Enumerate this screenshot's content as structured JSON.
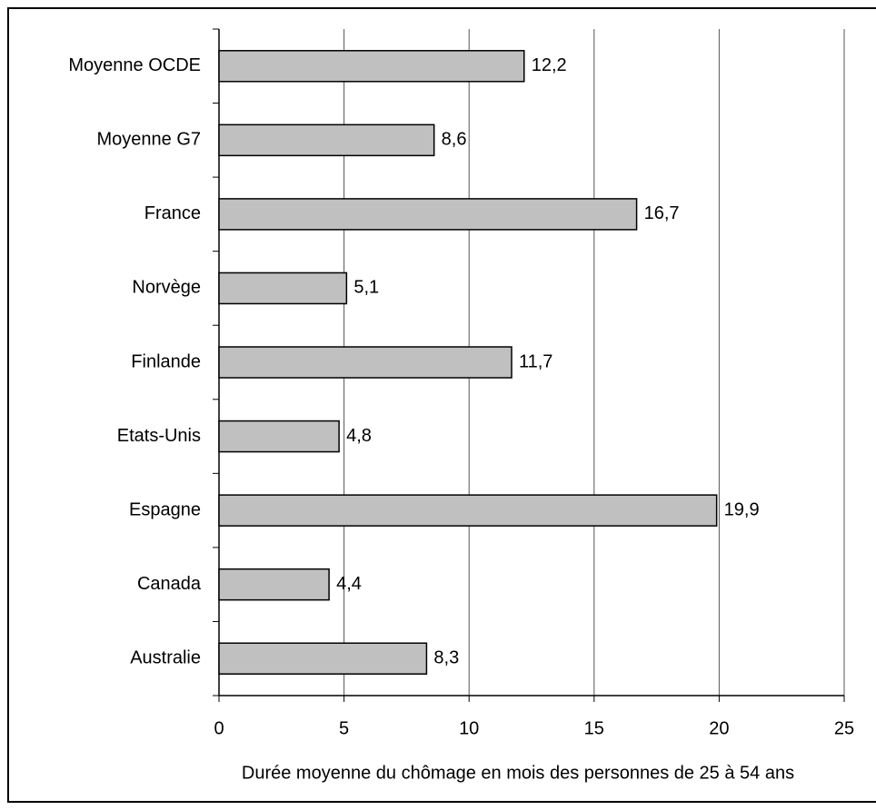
{
  "chart_data": {
    "type": "bar",
    "orientation": "horizontal",
    "x_label": "Durée moyenne du chômage en mois des personnes de 25 à 54 ans",
    "categories": [
      "Moyenne OCDE",
      "Moyenne G7",
      "France",
      "Norvège",
      "Finlande",
      "Etats-Unis",
      "Espagne",
      "Canada",
      "Australie"
    ],
    "values": [
      12.2,
      8.6,
      16.7,
      5.1,
      11.7,
      4.8,
      19.9,
      4.4,
      8.3
    ],
    "value_labels": [
      "12,2",
      "8,6",
      "16,7",
      "5,1",
      "11,7",
      "4,8",
      "19,9",
      "4,4",
      "8,3"
    ],
    "color": "#c0c0c0",
    "xlim": [
      0,
      25
    ],
    "xticks": [
      0,
      5,
      10,
      15,
      20,
      25
    ],
    "grid": true
  }
}
